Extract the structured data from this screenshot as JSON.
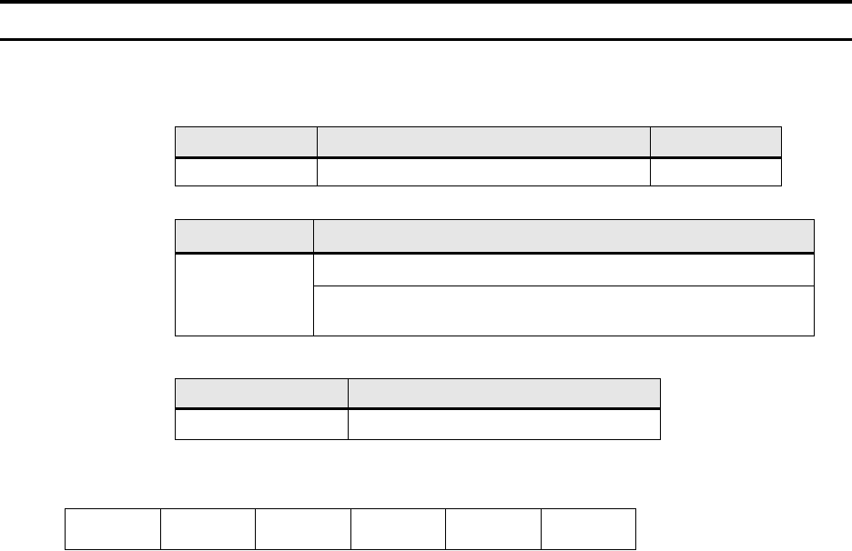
{
  "page": {
    "background_color": "#ffffff",
    "top_bar_color": "#000000",
    "rule_color": "#000000"
  },
  "table_style": {
    "header_fill": "#e6e6e6",
    "border_color": "#000000"
  },
  "table1": {
    "header": [
      "",
      "",
      ""
    ],
    "row": [
      "",
      "",
      ""
    ]
  },
  "table2": {
    "header": [
      "",
      ""
    ],
    "left_cell": "",
    "right_rows": [
      "",
      ""
    ]
  },
  "table3": {
    "header": [
      "",
      ""
    ],
    "row": [
      "",
      ""
    ]
  },
  "table4": {
    "cells": [
      "",
      "",
      "",
      "",
      "",
      ""
    ]
  }
}
